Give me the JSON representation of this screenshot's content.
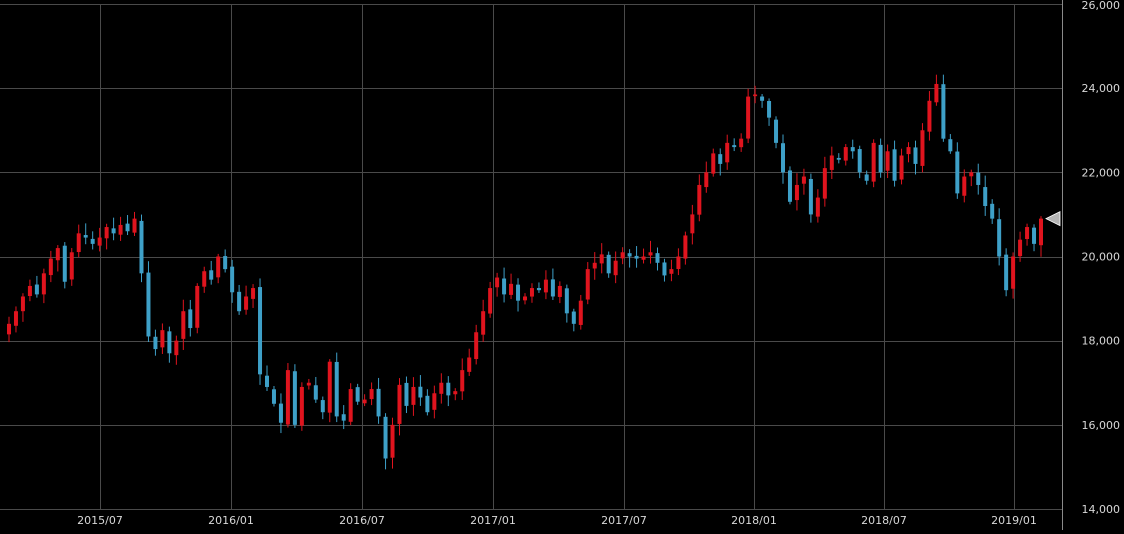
{
  "chart_data": {
    "type": "candlestick",
    "x_tick_labels": [
      "2015/07",
      "2016/01",
      "2016/07",
      "2017/01",
      "2017/07",
      "2018/01",
      "2018/07",
      "2019/01"
    ],
    "y_tick_labels": [
      "14,000",
      "16,000",
      "18,000",
      "20,000",
      "22,000",
      "24,000",
      "26,000"
    ],
    "ylim": [
      14000,
      26000
    ],
    "grid": true,
    "period": "weekly",
    "x_start": "2015/04",
    "x_end": "2019/02",
    "last_close": 20900,
    "colors": {
      "up": "#e0141e",
      "down": "#3ea0c8",
      "grid": "#4a4a4a",
      "background": "#000000",
      "text": "#d8d8d8",
      "marker": "#b4b4b4"
    },
    "series": [
      {
        "name": "",
        "closes": [
          18400,
          18700,
          19050,
          19300,
          19100,
          19600,
          19950,
          20200,
          19400,
          20100,
          20550,
          20450,
          20300,
          20450,
          20700,
          20550,
          20750,
          20600,
          20900,
          19600,
          18100,
          17800,
          18250,
          17700,
          18000,
          18700,
          18300,
          19300,
          19650,
          19450,
          20000,
          19700,
          19150,
          18700,
          19050,
          19250,
          17200,
          16900,
          16500,
          16050,
          17300,
          16000,
          16900,
          17000,
          16600,
          16300,
          17500,
          16200,
          16100,
          16850,
          16550,
          16600,
          16850,
          16200,
          15200,
          16000,
          16950,
          16450,
          16900,
          16650,
          16300,
          16750,
          17000,
          16700,
          16800,
          17300,
          17600,
          18200,
          18700,
          19250,
          19500,
          19100,
          19350,
          18950,
          19050,
          19250,
          19200,
          19450,
          19050,
          19300,
          18650,
          18400,
          18950,
          19700,
          19850,
          20050,
          19600,
          19900,
          20100,
          20000,
          19950,
          20000,
          20100,
          19850,
          19550,
          19700,
          20000,
          20500,
          21000,
          21700,
          22000,
          22450,
          22200,
          22700,
          22600,
          22800,
          23800,
          23850,
          23700,
          23300,
          22700,
          22000,
          21300,
          21700,
          21900,
          21000,
          21400,
          22100,
          22400,
          22300,
          22600,
          22500,
          22000,
          21800,
          22700,
          22000,
          22500,
          21800,
          22400,
          22600,
          22200,
          23000,
          23700,
          24100,
          22800,
          22500,
          21500,
          21900,
          22000,
          21700,
          21200,
          20900,
          20000,
          19200,
          20000,
          20400,
          20700,
          20300,
          20900
        ]
      }
    ]
  }
}
